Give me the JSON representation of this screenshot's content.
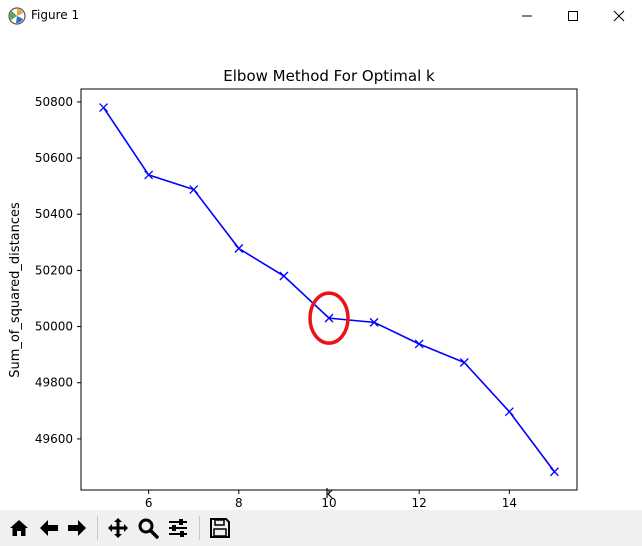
{
  "window": {
    "title": "Figure 1",
    "app_icon": "matplotlib-icon",
    "controls": [
      "minimize-icon",
      "maximize-icon",
      "close-icon"
    ]
  },
  "chart_data": {
    "type": "line",
    "title": "Elbow Method For Optimal k",
    "xlabel": "k",
    "ylabel": "Sum_of_squared_distances",
    "x": [
      5,
      6,
      7,
      8,
      9,
      10,
      11,
      12,
      13,
      14,
      15
    ],
    "series": [
      {
        "values": [
          50780,
          50540,
          50488,
          50278,
          50180,
          50030,
          50015,
          49938,
          49872,
          49697,
          49483
        ],
        "color": "#0000ff",
        "marker": "x"
      }
    ],
    "xticks": [
      6,
      8,
      10,
      12,
      14
    ],
    "yticks": [
      49600,
      49800,
      50000,
      50200,
      50400,
      50600,
      50800
    ],
    "xlim": [
      4.5,
      15.5
    ],
    "ylim": [
      49418,
      50846
    ],
    "grid": false,
    "annotation": {
      "shape": "ellipse",
      "color": "#e8141c",
      "x": 10,
      "y": 50030
    }
  },
  "toolbar": {
    "items": [
      "home-icon",
      "back-icon",
      "forward-icon",
      "pan-icon",
      "zoom-icon",
      "configure-subplots-icon",
      "save-icon"
    ]
  }
}
